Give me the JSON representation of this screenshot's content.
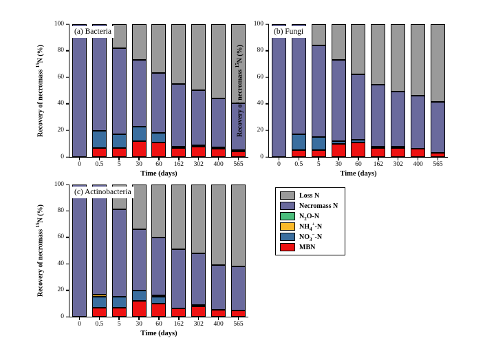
{
  "figure": {
    "background": "#ffffff",
    "x_axis_title": "Time (days)",
    "y_axis_title": "Recovery of necromass ^15^N (%)",
    "y_ticks": [
      0,
      20,
      40,
      60,
      80,
      100
    ],
    "ylim": [
      0,
      100
    ],
    "grid": false
  },
  "colors": {
    "loss": "#9A9A9A",
    "necromass": "#6A6A9D",
    "n2o": "#4BBE7C",
    "nh4": "#FBB92A",
    "no3": "#3A6E9F",
    "mbn": "#EE1111",
    "stroke": "#000000"
  },
  "legend": {
    "position": "middle-right-of-panel-c",
    "entries": [
      {
        "key": "loss",
        "label": "Loss N"
      },
      {
        "key": "necromass",
        "label": "Necromass N"
      },
      {
        "key": "n2o",
        "label": "N~2~O-N"
      },
      {
        "key": "nh4",
        "label": "NH~4~^+^-N"
      },
      {
        "key": "no3",
        "label": "NO~3~^−^-N"
      },
      {
        "key": "mbn",
        "label": "MBN"
      }
    ]
  },
  "chart_data": [
    {
      "type": "bar",
      "stacked": true,
      "panel_label": "(a) Bacteria",
      "xlabel": "Time (days)",
      "ylabel": "Recovery of necromass 15N (%)",
      "ylim": [
        0,
        100
      ],
      "categories": [
        "0",
        "0.5",
        "5",
        "30",
        "60",
        "162",
        "302",
        "400",
        "565"
      ],
      "series": [
        {
          "name": "MBN",
          "key": "mbn",
          "values": [
            0,
            7,
            7,
            12,
            11,
            6.5,
            8,
            6,
            4
          ]
        },
        {
          "name": "NO3--N",
          "key": "no3",
          "values": [
            0,
            12.5,
            10,
            11,
            7,
            1,
            1,
            1,
            1
          ]
        },
        {
          "name": "NH4+-N",
          "key": "nh4",
          "values": [
            0,
            0,
            0,
            0,
            0,
            0,
            0,
            0,
            0
          ]
        },
        {
          "name": "N2O-N",
          "key": "n2o",
          "values": [
            0,
            0,
            0,
            0,
            0,
            0,
            0,
            0,
            0
          ]
        },
        {
          "name": "Necromass N",
          "key": "necromass",
          "values": [
            100,
            80.5,
            65,
            50,
            45,
            47.5,
            41,
            37,
            35.5
          ]
        },
        {
          "name": "Loss N",
          "key": "loss",
          "values": [
            0,
            0,
            18,
            27,
            37,
            45,
            50,
            56,
            59.5
          ]
        }
      ]
    },
    {
      "type": "bar",
      "stacked": true,
      "panel_label": "(b) Fungi",
      "xlabel": "Time (days)",
      "ylabel": "Recovery of necromass 15N (%)",
      "ylim": [
        0,
        100
      ],
      "categories": [
        "0",
        "0.5",
        "5",
        "30",
        "60",
        "162",
        "302",
        "400",
        "565"
      ],
      "series": [
        {
          "name": "MBN",
          "key": "mbn",
          "values": [
            0,
            5,
            5,
            10,
            11,
            7,
            7,
            6,
            3
          ]
        },
        {
          "name": "NO3--N",
          "key": "no3",
          "values": [
            0,
            12,
            10,
            2,
            2,
            1,
            1,
            0,
            0
          ]
        },
        {
          "name": "NH4+-N",
          "key": "nh4",
          "values": [
            0,
            0,
            0,
            0,
            0,
            0,
            0,
            0,
            0
          ]
        },
        {
          "name": "N2O-N",
          "key": "n2o",
          "values": [
            0,
            0,
            0,
            0,
            0,
            0,
            0,
            0,
            0
          ]
        },
        {
          "name": "Necromass N",
          "key": "necromass",
          "values": [
            100,
            83,
            69,
            61,
            49,
            46.5,
            41,
            40,
            38.5
          ]
        },
        {
          "name": "Loss N",
          "key": "loss",
          "values": [
            0,
            0,
            16,
            27,
            38,
            45.5,
            51,
            54,
            58.5
          ]
        }
      ]
    },
    {
      "type": "bar",
      "stacked": true,
      "panel_label": "(c) Actinobacteria",
      "xlabel": "Time (days)",
      "ylabel": "Recovery of necromass 15N (%)",
      "ylim": [
        0,
        100
      ],
      "categories": [
        "0",
        "0.5",
        "5",
        "30",
        "60",
        "162",
        "302",
        "400",
        "565"
      ],
      "series": [
        {
          "name": "MBN",
          "key": "mbn",
          "values": [
            0,
            7,
            7,
            12,
            10,
            6,
            8,
            5,
            4.5
          ]
        },
        {
          "name": "NO3--N",
          "key": "no3",
          "values": [
            0,
            8,
            8,
            8,
            5,
            0,
            1,
            0,
            0
          ]
        },
        {
          "name": "NH4+-N",
          "key": "nh4",
          "values": [
            0,
            1.5,
            0,
            0,
            1,
            0,
            0,
            0,
            0
          ]
        },
        {
          "name": "N2O-N",
          "key": "n2o",
          "values": [
            0,
            0,
            0,
            0,
            0,
            0,
            0,
            0,
            0
          ]
        },
        {
          "name": "Necromass N",
          "key": "necromass",
          "values": [
            100,
            83.5,
            66,
            46,
            44,
            45,
            39,
            34,
            33.5
          ]
        },
        {
          "name": "Loss N",
          "key": "loss",
          "values": [
            0,
            0,
            19,
            34,
            40,
            49,
            52,
            61,
            62
          ]
        }
      ]
    }
  ]
}
